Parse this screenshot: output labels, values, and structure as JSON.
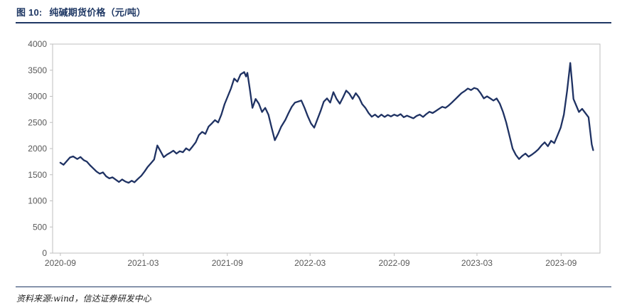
{
  "header": {
    "figure_label": "图 10:",
    "title": "纯碱期货价格（元/吨）"
  },
  "footer": {
    "source": "资料来源:wind，信达证券研发中心"
  },
  "chart_data": {
    "type": "line",
    "title": "纯碱期货价格（元/吨）",
    "xlabel": "",
    "ylabel": "",
    "ylim": [
      0,
      4000
    ],
    "y_ticks": [
      0,
      500,
      1000,
      1500,
      2000,
      2500,
      3000,
      3500,
      4000
    ],
    "x_ticks": [
      "2020-09",
      "2021-03",
      "2021-09",
      "2022-03",
      "2022-09",
      "2023-03",
      "2023-09"
    ],
    "xlim": [
      "2020-08-15",
      "2023-11-25"
    ],
    "grid": false,
    "legend": "none",
    "axis_color": "#bfbfbf",
    "tick_label_color": "#595959",
    "series": [
      {
        "name": "纯碱期货价格",
        "color": "#1f3263",
        "points": [
          [
            "2020-09-01",
            1730
          ],
          [
            "2020-09-08",
            1690
          ],
          [
            "2020-09-15",
            1760
          ],
          [
            "2020-09-22",
            1830
          ],
          [
            "2020-09-29",
            1850
          ],
          [
            "2020-10-08",
            1800
          ],
          [
            "2020-10-15",
            1840
          ],
          [
            "2020-10-22",
            1780
          ],
          [
            "2020-10-29",
            1750
          ],
          [
            "2020-11-05",
            1680
          ],
          [
            "2020-11-12",
            1620
          ],
          [
            "2020-11-19",
            1560
          ],
          [
            "2020-11-26",
            1520
          ],
          [
            "2020-12-03",
            1545
          ],
          [
            "2020-12-10",
            1470
          ],
          [
            "2020-12-17",
            1430
          ],
          [
            "2020-12-24",
            1450
          ],
          [
            "2020-12-31",
            1405
          ],
          [
            "2021-01-07",
            1360
          ],
          [
            "2021-01-14",
            1410
          ],
          [
            "2021-01-21",
            1370
          ],
          [
            "2021-01-28",
            1345
          ],
          [
            "2021-02-04",
            1385
          ],
          [
            "2021-02-10",
            1355
          ],
          [
            "2021-02-18",
            1425
          ],
          [
            "2021-02-25",
            1480
          ],
          [
            "2021-03-04",
            1560
          ],
          [
            "2021-03-11",
            1650
          ],
          [
            "2021-03-18",
            1720
          ],
          [
            "2021-03-25",
            1790
          ],
          [
            "2021-04-01",
            2060
          ],
          [
            "2021-04-08",
            1950
          ],
          [
            "2021-04-15",
            1835
          ],
          [
            "2021-04-22",
            1885
          ],
          [
            "2021-04-29",
            1920
          ],
          [
            "2021-05-06",
            1960
          ],
          [
            "2021-05-13",
            1905
          ],
          [
            "2021-05-20",
            1950
          ],
          [
            "2021-05-27",
            1930
          ],
          [
            "2021-06-03",
            2005
          ],
          [
            "2021-06-10",
            1965
          ],
          [
            "2021-06-17",
            2040
          ],
          [
            "2021-06-24",
            2120
          ],
          [
            "2021-07-01",
            2260
          ],
          [
            "2021-07-08",
            2320
          ],
          [
            "2021-07-15",
            2280
          ],
          [
            "2021-07-22",
            2420
          ],
          [
            "2021-07-29",
            2480
          ],
          [
            "2021-08-05",
            2545
          ],
          [
            "2021-08-12",
            2500
          ],
          [
            "2021-08-19",
            2650
          ],
          [
            "2021-08-26",
            2850
          ],
          [
            "2021-09-02",
            3000
          ],
          [
            "2021-09-09",
            3150
          ],
          [
            "2021-09-16",
            3340
          ],
          [
            "2021-09-23",
            3280
          ],
          [
            "2021-09-30",
            3420
          ],
          [
            "2021-10-08",
            3465
          ],
          [
            "2021-10-12",
            3380
          ],
          [
            "2021-10-15",
            3450
          ],
          [
            "2021-10-20",
            3150
          ],
          [
            "2021-10-26",
            2780
          ],
          [
            "2021-11-02",
            2950
          ],
          [
            "2021-11-09",
            2860
          ],
          [
            "2021-11-16",
            2700
          ],
          [
            "2021-11-23",
            2780
          ],
          [
            "2021-11-30",
            2650
          ],
          [
            "2021-12-07",
            2400
          ],
          [
            "2021-12-14",
            2160
          ],
          [
            "2021-12-21",
            2280
          ],
          [
            "2021-12-28",
            2420
          ],
          [
            "2022-01-06",
            2550
          ],
          [
            "2022-01-13",
            2680
          ],
          [
            "2022-01-20",
            2800
          ],
          [
            "2022-01-27",
            2880
          ],
          [
            "2022-02-10",
            2920
          ],
          [
            "2022-02-17",
            2780
          ],
          [
            "2022-02-24",
            2620
          ],
          [
            "2022-03-03",
            2480
          ],
          [
            "2022-03-10",
            2400
          ],
          [
            "2022-03-17",
            2560
          ],
          [
            "2022-03-24",
            2720
          ],
          [
            "2022-03-31",
            2900
          ],
          [
            "2022-04-07",
            2960
          ],
          [
            "2022-04-14",
            2880
          ],
          [
            "2022-04-21",
            3080
          ],
          [
            "2022-04-28",
            2950
          ],
          [
            "2022-05-05",
            2860
          ],
          [
            "2022-05-12",
            2980
          ],
          [
            "2022-05-19",
            3110
          ],
          [
            "2022-05-26",
            3050
          ],
          [
            "2022-06-02",
            2950
          ],
          [
            "2022-06-09",
            3060
          ],
          [
            "2022-06-16",
            2980
          ],
          [
            "2022-06-23",
            2850
          ],
          [
            "2022-06-30",
            2780
          ],
          [
            "2022-07-07",
            2680
          ],
          [
            "2022-07-14",
            2610
          ],
          [
            "2022-07-21",
            2650
          ],
          [
            "2022-07-28",
            2600
          ],
          [
            "2022-08-04",
            2650
          ],
          [
            "2022-08-11",
            2605
          ],
          [
            "2022-08-18",
            2645
          ],
          [
            "2022-08-25",
            2615
          ],
          [
            "2022-09-01",
            2650
          ],
          [
            "2022-09-08",
            2625
          ],
          [
            "2022-09-15",
            2660
          ],
          [
            "2022-09-22",
            2600
          ],
          [
            "2022-09-29",
            2630
          ],
          [
            "2022-10-13",
            2580
          ],
          [
            "2022-10-20",
            2625
          ],
          [
            "2022-10-27",
            2650
          ],
          [
            "2022-11-03",
            2605
          ],
          [
            "2022-11-10",
            2660
          ],
          [
            "2022-11-17",
            2705
          ],
          [
            "2022-11-24",
            2680
          ],
          [
            "2022-12-01",
            2720
          ],
          [
            "2022-12-08",
            2760
          ],
          [
            "2022-12-15",
            2800
          ],
          [
            "2022-12-22",
            2780
          ],
          [
            "2022-12-29",
            2825
          ],
          [
            "2023-01-05",
            2880
          ],
          [
            "2023-01-12",
            2940
          ],
          [
            "2023-01-19",
            3000
          ],
          [
            "2023-01-26",
            3060
          ],
          [
            "2023-02-02",
            3100
          ],
          [
            "2023-02-09",
            3150
          ],
          [
            "2023-02-16",
            3120
          ],
          [
            "2023-02-23",
            3160
          ],
          [
            "2023-03-02",
            3140
          ],
          [
            "2023-03-09",
            3060
          ],
          [
            "2023-03-16",
            2960
          ],
          [
            "2023-03-23",
            3000
          ],
          [
            "2023-03-30",
            2960
          ],
          [
            "2023-04-06",
            2920
          ],
          [
            "2023-04-13",
            2960
          ],
          [
            "2023-04-20",
            2860
          ],
          [
            "2023-04-27",
            2700
          ],
          [
            "2023-05-04",
            2500
          ],
          [
            "2023-05-11",
            2250
          ],
          [
            "2023-05-18",
            2000
          ],
          [
            "2023-05-25",
            1880
          ],
          [
            "2023-06-01",
            1800
          ],
          [
            "2023-06-08",
            1860
          ],
          [
            "2023-06-15",
            1905
          ],
          [
            "2023-06-22",
            1845
          ],
          [
            "2023-06-29",
            1885
          ],
          [
            "2023-07-06",
            1930
          ],
          [
            "2023-07-13",
            1985
          ],
          [
            "2023-07-20",
            2060
          ],
          [
            "2023-07-27",
            2120
          ],
          [
            "2023-08-03",
            2045
          ],
          [
            "2023-08-10",
            2150
          ],
          [
            "2023-08-17",
            2105
          ],
          [
            "2023-08-24",
            2250
          ],
          [
            "2023-08-31",
            2400
          ],
          [
            "2023-09-07",
            2650
          ],
          [
            "2023-09-14",
            3100
          ],
          [
            "2023-09-21",
            3640
          ],
          [
            "2023-09-25",
            3250
          ],
          [
            "2023-09-28",
            2950
          ],
          [
            "2023-10-10",
            2700
          ],
          [
            "2023-10-17",
            2760
          ],
          [
            "2023-10-24",
            2680
          ],
          [
            "2023-10-31",
            2600
          ],
          [
            "2023-11-07",
            2080
          ],
          [
            "2023-11-10",
            1970
          ]
        ]
      }
    ]
  }
}
